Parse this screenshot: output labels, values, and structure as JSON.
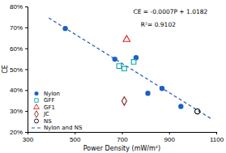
{
  "chart_data": {
    "type": "scatter",
    "xlabel": "Power Density (mW/m²)",
    "ylabel": "CE",
    "xlim": [
      300,
      1100
    ],
    "ylim": [
      0.2,
      0.8
    ],
    "xticks": [
      300,
      500,
      700,
      900,
      1100
    ],
    "yticks": [
      {
        "value": 0.2,
        "label": "20%"
      },
      {
        "value": 0.3,
        "label": "30%"
      },
      {
        "value": 0.4,
        "label": "40%"
      },
      {
        "value": 0.5,
        "label": "50%"
      },
      {
        "value": 0.6,
        "label": "60%"
      },
      {
        "value": 0.7,
        "label": "70%"
      },
      {
        "value": 0.8,
        "label": "80%"
      }
    ],
    "grid": false,
    "legend": "lower left",
    "annotations": [
      "CE = -0.0007P + 1.0182",
      "R²= 0.9102"
    ],
    "series": [
      {
        "name": "Nylon",
        "color": "#2060c0",
        "marker": "circle",
        "x": [
          460,
          670,
          760,
          810,
          870,
          950
        ],
        "values": [
          0.695,
          0.548,
          0.555,
          0.385,
          0.408,
          0.322
        ]
      },
      {
        "name": "GFF",
        "color": "#00aaaa",
        "marker": "open-square",
        "x": [
          688,
          710,
          750
        ],
        "values": [
          0.515,
          0.503,
          0.535
        ]
      },
      {
        "name": "GF1",
        "color": "#dd2222",
        "marker": "open-triangle",
        "x": [
          720
        ],
        "values": [
          0.642
        ]
      },
      {
        "name": "JC",
        "color": "#882222",
        "marker": "open-diamond",
        "x": [
          710
        ],
        "values": [
          0.348
        ]
      },
      {
        "name": "NS",
        "color": "#000000",
        "marker": "open-circle",
        "x": [
          1020
        ],
        "values": [
          0.298
        ]
      },
      {
        "name": "Nylon and NS",
        "type": "line",
        "line_style": "dashed",
        "color": "#2255bb",
        "x": [
          390,
          1080
        ],
        "values": [
          0.7452,
          0.2622
        ]
      }
    ]
  }
}
